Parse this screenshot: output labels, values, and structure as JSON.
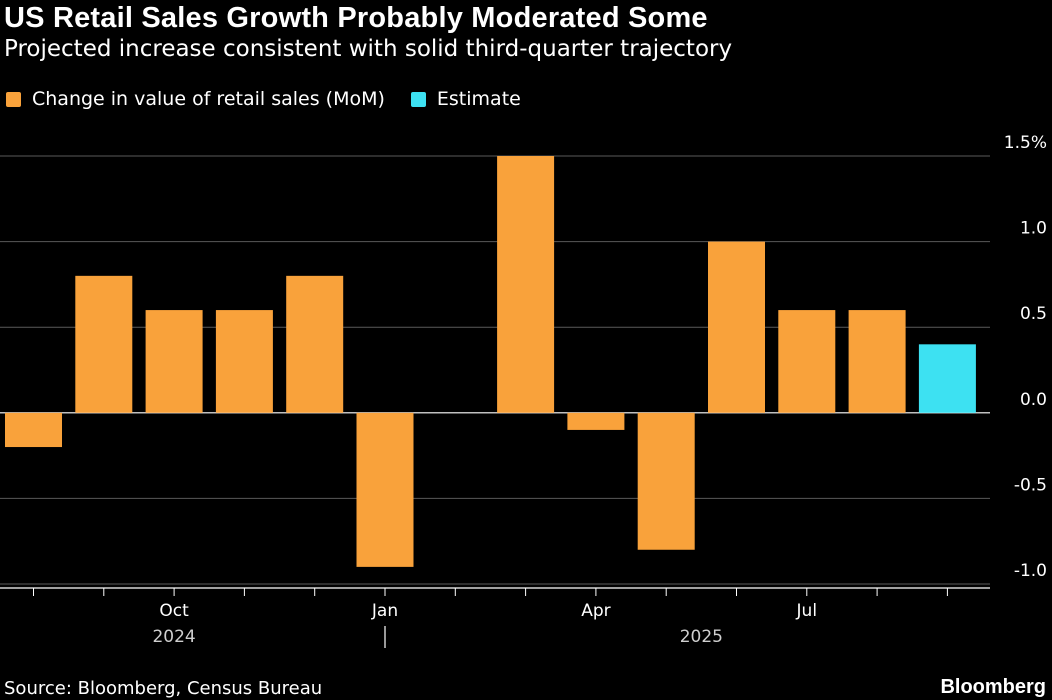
{
  "header": {
    "title": "US Retail Sales Growth Probably Moderated Some",
    "subtitle": "Projected increase consistent with solid third-quarter trajectory"
  },
  "legend": [
    {
      "label": "Change in value of retail sales (MoM)",
      "color": "#f9a23b"
    },
    {
      "label": "Estimate",
      "color": "#3de1f2"
    }
  ],
  "chart_data": {
    "type": "bar",
    "series": [
      {
        "name": "Change in value of retail sales (MoM)",
        "color": "#f9a23b",
        "x": [
          "2024-08",
          "2024-09",
          "2024-10",
          "2024-11",
          "2024-12",
          "2025-01",
          "2025-02",
          "2025-03",
          "2025-04",
          "2025-05",
          "2025-06",
          "2025-07",
          "2025-08"
        ],
        "values": [
          -0.2,
          0.8,
          0.6,
          0.6,
          0.8,
          -0.9,
          0.0,
          1.5,
          -0.1,
          -0.8,
          1.0,
          0.6,
          0.6
        ]
      },
      {
        "name": "Estimate",
        "color": "#3de1f2",
        "x": [
          "2025-09"
        ],
        "values": [
          0.4
        ]
      }
    ],
    "ylim": [
      -1.0,
      1.5
    ],
    "yticks": [
      {
        "value": 1.5,
        "label": "1.5%"
      },
      {
        "value": 1.0,
        "label": "1.0"
      },
      {
        "value": 0.5,
        "label": "0.5"
      },
      {
        "value": 0.0,
        "label": "0.0"
      },
      {
        "value": -0.5,
        "label": "-0.5"
      },
      {
        "value": -1.0,
        "label": "-1.0"
      }
    ],
    "xtick_labels": [
      {
        "month": "2024-10",
        "label": "Oct"
      },
      {
        "month": "2025-01",
        "label": "Jan"
      },
      {
        "month": "2025-04",
        "label": "Apr"
      },
      {
        "month": "2025-07",
        "label": "Jul"
      }
    ],
    "year_labels": [
      {
        "month": "2024-10",
        "label": "2024"
      },
      {
        "month": "2025-05",
        "label": "2025"
      }
    ],
    "grid": true,
    "y_axis_side": "right",
    "legend_position": "top-left"
  },
  "footer": {
    "source": "Source: Bloomberg, Census Bureau",
    "brand": "Bloomberg"
  }
}
